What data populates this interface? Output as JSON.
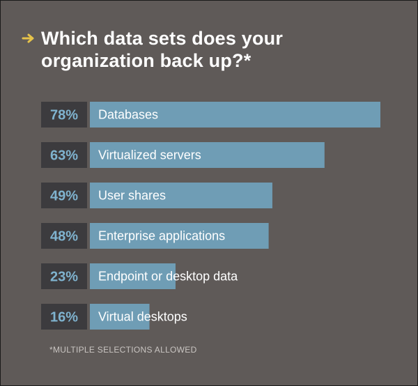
{
  "header": {
    "title_line1": "Which data sets does your",
    "title_line2": "organization back up?*"
  },
  "colors": {
    "background": "#5f5a58",
    "bar": "#6f9db5",
    "pct_box": "#3c3b3e",
    "pct_text": "#7fb3cf",
    "label_text": "#ffffff",
    "arrow": "#e6c34a"
  },
  "chart_data": {
    "type": "bar",
    "orientation": "horizontal",
    "categories": [
      "Databases",
      "Virtualized servers",
      "User shares",
      "Enterprise applications",
      "Endpoint or desktop data",
      "Virtual desktops"
    ],
    "value_labels": [
      "78%",
      "63%",
      "49%",
      "48%",
      "23%",
      "16%"
    ],
    "values": [
      78,
      63,
      49,
      48,
      23,
      16
    ],
    "unit": "%",
    "title": "Which data sets does your organization back up?*",
    "xlabel": "",
    "ylabel": "",
    "xlim": [
      0,
      78
    ],
    "grid": false
  },
  "footnote": "*MULTIPLE SELECTIONS ALLOWED"
}
